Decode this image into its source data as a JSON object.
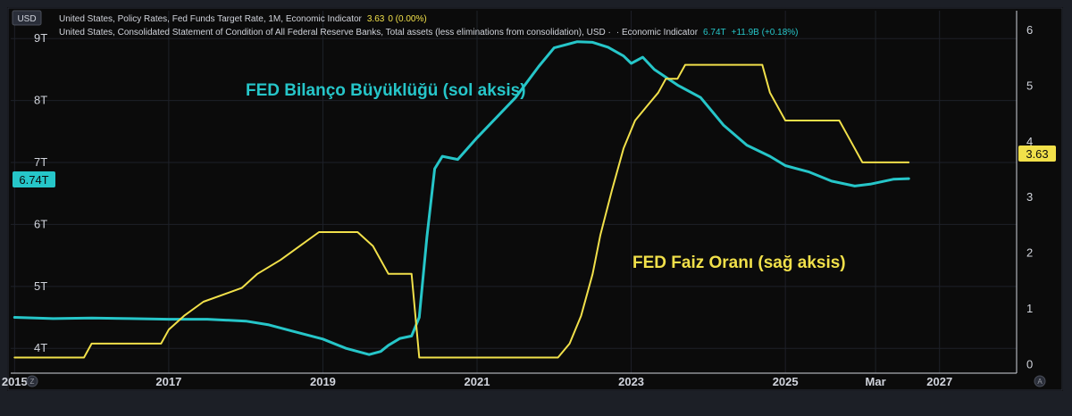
{
  "header": {
    "currency": "USD",
    "legend1_text": "United States, Policy Rates, Fed Funds Target Rate, 1M, Economic Indicator",
    "legend1_value": "3.63",
    "legend1_change": "0 (0.00%)",
    "legend2_text": "United States, Consolidated Statement of Condition of All Federal Reserve Banks, Total assets (less eliminations from consolidation), USD ·",
    "legend2_suffix": "· Economic Indicator",
    "legend2_value": "6.74T",
    "legend2_change": "+11.9B (+0.18%)"
  },
  "footer": {
    "left_button": "Z",
    "right_button": "A"
  },
  "colors": {
    "background": "#1c1f26",
    "plot": "#0b0b0b",
    "balance": "#26c6c9",
    "rate": "#f1e04a",
    "text": "#d1d4dc"
  },
  "chart_data": {
    "type": "line",
    "x_ticks": [
      "2015",
      "2017",
      "2019",
      "2021",
      "2023",
      "2025",
      "Mar",
      "2027"
    ],
    "x_range": [
      2014.95,
      2028.0
    ],
    "left_axis": {
      "ticks": [
        "4T",
        "5T",
        "6T",
        "7T",
        "8T",
        "9T"
      ],
      "range": [
        3.6,
        9.45
      ],
      "unit": "T USD"
    },
    "right_axis": {
      "ticks": [
        "0",
        "1",
        "2",
        "3",
        "4",
        "5",
        "6"
      ],
      "range": [
        -0.15,
        6.35
      ],
      "unit": "%"
    },
    "series": [
      {
        "name": "FED Bilanço Büyüklüğü (sol aksis)",
        "axis": "left",
        "color": "#26c6c9",
        "current_value_label": "6.74T",
        "points": [
          [
            2015.0,
            4.5
          ],
          [
            2015.5,
            4.48
          ],
          [
            2016.0,
            4.49
          ],
          [
            2016.5,
            4.48
          ],
          [
            2017.0,
            4.47
          ],
          [
            2017.5,
            4.47
          ],
          [
            2018.0,
            4.44
          ],
          [
            2018.3,
            4.38
          ],
          [
            2018.6,
            4.28
          ],
          [
            2019.0,
            4.15
          ],
          [
            2019.3,
            4.0
          ],
          [
            2019.6,
            3.9
          ],
          [
            2019.75,
            3.95
          ],
          [
            2019.85,
            4.05
          ],
          [
            2020.0,
            4.16
          ],
          [
            2020.15,
            4.2
          ],
          [
            2020.25,
            4.5
          ],
          [
            2020.35,
            5.8
          ],
          [
            2020.45,
            6.9
          ],
          [
            2020.55,
            7.1
          ],
          [
            2020.75,
            7.05
          ],
          [
            2021.0,
            7.4
          ],
          [
            2021.5,
            8.05
          ],
          [
            2021.8,
            8.55
          ],
          [
            2022.0,
            8.85
          ],
          [
            2022.3,
            8.95
          ],
          [
            2022.5,
            8.94
          ],
          [
            2022.7,
            8.86
          ],
          [
            2022.9,
            8.72
          ],
          [
            2023.0,
            8.6
          ],
          [
            2023.15,
            8.7
          ],
          [
            2023.3,
            8.5
          ],
          [
            2023.6,
            8.25
          ],
          [
            2023.9,
            8.05
          ],
          [
            2024.2,
            7.6
          ],
          [
            2024.5,
            7.28
          ],
          [
            2024.8,
            7.1
          ],
          [
            2025.0,
            6.95
          ],
          [
            2025.3,
            6.85
          ],
          [
            2025.6,
            6.7
          ],
          [
            2025.9,
            6.62
          ],
          [
            2026.1,
            6.65
          ],
          [
            2026.4,
            6.73
          ],
          [
            2026.6,
            6.74
          ]
        ]
      },
      {
        "name": "FED Faiz Oranı (sağ aksis)",
        "axis": "right",
        "color": "#f1e04a",
        "current_value_label": "3.63",
        "points": [
          [
            2015.0,
            0.13
          ],
          [
            2015.9,
            0.13
          ],
          [
            2016.0,
            0.38
          ],
          [
            2016.9,
            0.38
          ],
          [
            2017.0,
            0.63
          ],
          [
            2017.2,
            0.88
          ],
          [
            2017.45,
            1.13
          ],
          [
            2017.95,
            1.38
          ],
          [
            2018.15,
            1.63
          ],
          [
            2018.45,
            1.88
          ],
          [
            2018.7,
            2.13
          ],
          [
            2018.95,
            2.38
          ],
          [
            2019.45,
            2.38
          ],
          [
            2019.65,
            2.13
          ],
          [
            2019.85,
            1.63
          ],
          [
            2020.15,
            1.63
          ],
          [
            2020.25,
            0.13
          ],
          [
            2022.05,
            0.13
          ],
          [
            2022.2,
            0.38
          ],
          [
            2022.35,
            0.88
          ],
          [
            2022.5,
            1.63
          ],
          [
            2022.6,
            2.33
          ],
          [
            2022.75,
            3.13
          ],
          [
            2022.9,
            3.88
          ],
          [
            2023.05,
            4.38
          ],
          [
            2023.2,
            4.63
          ],
          [
            2023.35,
            4.88
          ],
          [
            2023.45,
            5.13
          ],
          [
            2023.6,
            5.13
          ],
          [
            2023.7,
            5.38
          ],
          [
            2024.7,
            5.38
          ],
          [
            2024.8,
            4.88
          ],
          [
            2025.0,
            4.38
          ],
          [
            2025.7,
            4.38
          ],
          [
            2025.8,
            4.13
          ],
          [
            2026.0,
            3.63
          ],
          [
            2026.6,
            3.63
          ]
        ]
      }
    ],
    "annotations": [
      {
        "text": "FED Bilanço Büyüklüğü (sol aksis)",
        "color": "#26c6c9"
      },
      {
        "text": "FED Faiz Oranı (sağ aksis)",
        "color": "#f1e04a"
      }
    ]
  }
}
